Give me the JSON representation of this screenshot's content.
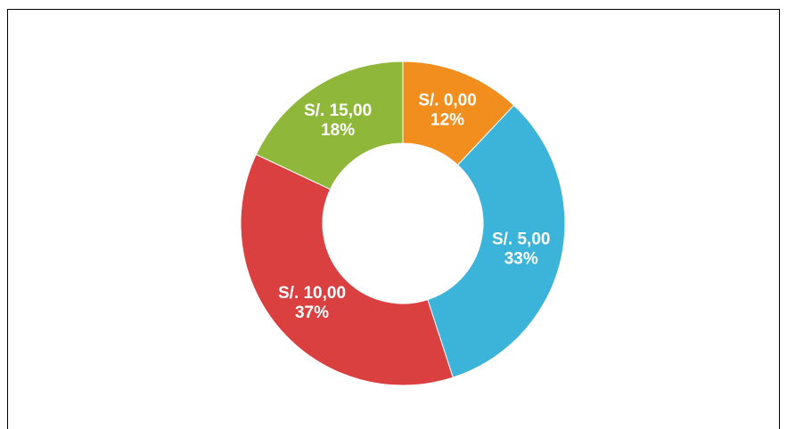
{
  "chart_data": {
    "type": "donut",
    "categories": [
      "S/. 0,00",
      "S/. 5,00",
      "S/. 10,00",
      "S/. 15,00"
    ],
    "values": [
      12,
      33,
      37,
      18
    ],
    "value_labels": [
      "12%",
      "33%",
      "37%",
      "18%"
    ],
    "colors": [
      "#f28e1e",
      "#3cb4d9",
      "#d9403f",
      "#8fb83a"
    ]
  }
}
